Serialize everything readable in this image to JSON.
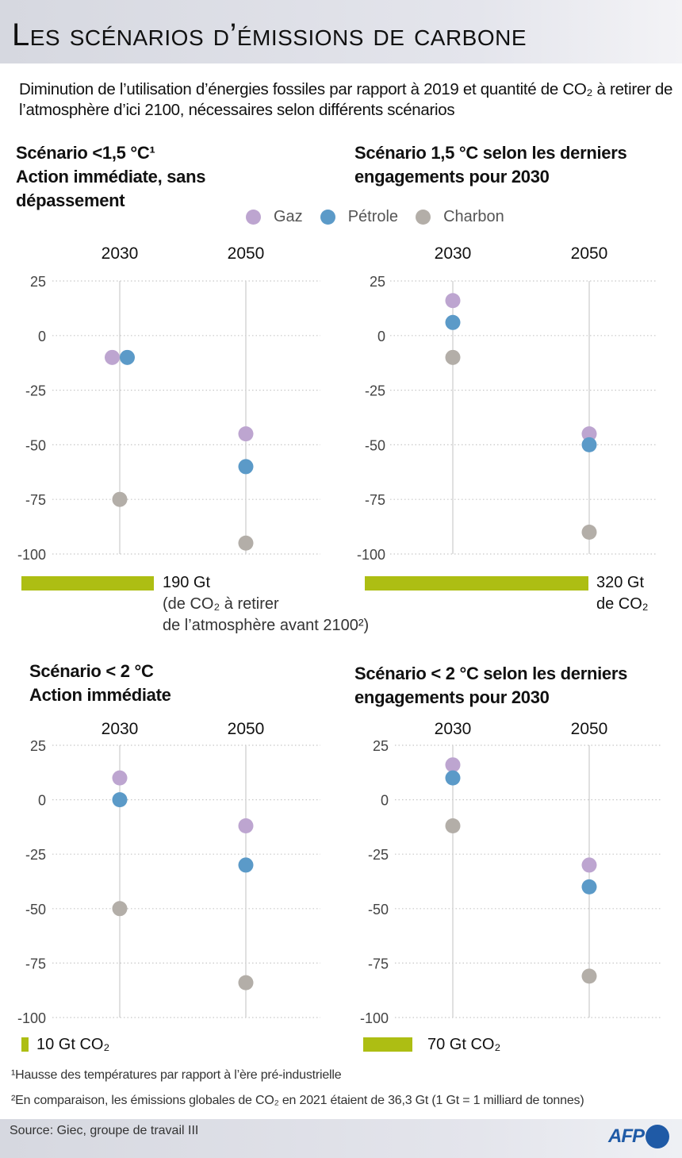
{
  "header": {
    "title": "Les scénarios d’émissions de carbone",
    "subtitle": "Diminution de l’utilisation d’énergies fossiles par rapport à 2019 et quantité de CO₂ à retirer de l’atmosphère d’ici 2100, nécessaires selon différents scénarios"
  },
  "legend": [
    {
      "label": "Gaz",
      "color": "#bda5d0"
    },
    {
      "label": "Pétrole",
      "color": "#5b9ac8"
    },
    {
      "label": "Charbon",
      "color": "#b3aea8"
    }
  ],
  "removal_bar_color": "#adbe13",
  "chart_data": [
    {
      "type": "scatter",
      "title": "Scénario <1,5 °C¹ Action immédiate, sans dépassement",
      "title_lines": [
        "Scénario <1,5 °C¹",
        "Action immédiate, sans",
        "dépassement"
      ],
      "categories": [
        "2030",
        "2050"
      ],
      "yticks": [
        "25",
        "0",
        "-25",
        "-50",
        "-75",
        "-100"
      ],
      "ylim": [
        -100,
        25
      ],
      "series": [
        {
          "name": "Gaz",
          "values": [
            -10,
            -45
          ]
        },
        {
          "name": "Pétrole",
          "values": [
            -10,
            -60
          ]
        },
        {
          "name": "Charbon",
          "values": [
            -75,
            -95
          ]
        }
      ],
      "co2_removal_gt": 190,
      "co2_label_lines": [
        "190 Gt",
        "(de CO₂ à retirer",
        "de l’atmosphère avant 2100²)"
      ]
    },
    {
      "type": "scatter",
      "title": "Scénario 1,5 °C selon les derniers engagements pour 2030",
      "title_lines": [
        "Scénario 1,5 °C selon les derniers",
        "engagements pour 2030"
      ],
      "categories": [
        "2030",
        "2050"
      ],
      "yticks": [
        "25",
        "0",
        "-25",
        "-50",
        "-75",
        "-100"
      ],
      "ylim": [
        -100,
        25
      ],
      "series": [
        {
          "name": "Gaz",
          "values": [
            16,
            -45
          ]
        },
        {
          "name": "Pétrole",
          "values": [
            6,
            -50
          ]
        },
        {
          "name": "Charbon",
          "values": [
            -10,
            -90
          ]
        }
      ],
      "co2_removal_gt": 320,
      "co2_label_lines": [
        "320 Gt",
        "de CO₂"
      ]
    },
    {
      "type": "scatter",
      "title": "Scénario < 2 °C Action immédiate",
      "title_lines": [
        "Scénario < 2 °C",
        "Action immédiate"
      ],
      "categories": [
        "2030",
        "2050"
      ],
      "yticks": [
        "25",
        "0",
        "-25",
        "-50",
        "-75",
        "-100"
      ],
      "ylim": [
        -100,
        25
      ],
      "series": [
        {
          "name": "Gaz",
          "values": [
            10,
            -12
          ]
        },
        {
          "name": "Pétrole",
          "values": [
            0,
            -30
          ]
        },
        {
          "name": "Charbon",
          "values": [
            -50,
            -84
          ]
        }
      ],
      "co2_removal_gt": 10,
      "co2_label_lines": [
        "10 Gt CO₂"
      ]
    },
    {
      "type": "scatter",
      "title": "Scénario < 2 °C selon les derniers engagements pour 2030",
      "title_lines": [
        "Scénario < 2 °C selon les derniers",
        "engagements pour 2030"
      ],
      "categories": [
        "2030",
        "2050"
      ],
      "yticks": [
        "25",
        "0",
        "-25",
        "-50",
        "-75",
        "-100"
      ],
      "ylim": [
        -100,
        25
      ],
      "series": [
        {
          "name": "Gaz",
          "values": [
            16,
            -30
          ]
        },
        {
          "name": "Pétrole",
          "values": [
            10,
            -40
          ]
        },
        {
          "name": "Charbon",
          "values": [
            -12,
            -81
          ]
        }
      ],
      "co2_removal_gt": 70,
      "co2_label_lines": [
        "70 Gt CO₂"
      ]
    }
  ],
  "footnotes": [
    "¹Hausse des températures par rapport à l’ère pré-industrielle",
    "²En comparaison, les émissions globales de CO₂ en 2021 étaient de 36,3 Gt (1 Gt = 1 milliard de tonnes)"
  ],
  "footer": {
    "source": "Source: Giec, groupe de travail III",
    "logo": "AFP"
  }
}
